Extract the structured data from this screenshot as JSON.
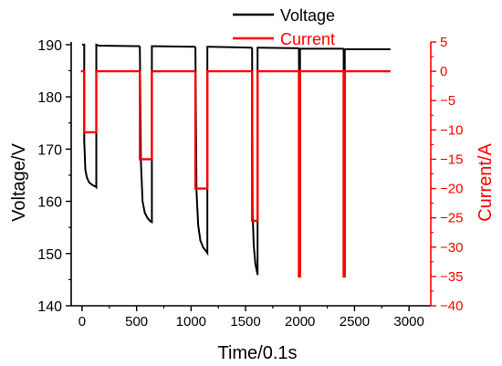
{
  "chart_data": {
    "type": "line",
    "xlabel": "Time/0.1s",
    "ylabel_left": "Voltage/V",
    "ylabel_right": "Current/A",
    "xlim": [
      -100,
      3200
    ],
    "ylim_left": [
      140,
      190.5
    ],
    "ylim_right": [
      -40,
      5
    ],
    "xticks": [
      0,
      500,
      1000,
      1500,
      2000,
      2500,
      3000
    ],
    "yticks_left": [
      140,
      150,
      160,
      170,
      180,
      190
    ],
    "yticks_right": [
      5,
      0,
      -5,
      -10,
      -15,
      -20,
      -25,
      -30,
      -35,
      -40
    ],
    "grid": false,
    "legend": {
      "position": "top-center"
    },
    "colors": {
      "voltage": "#000000",
      "current": "#ff0000",
      "axis_left": "#000000",
      "axis_right": "#ff0000"
    },
    "series": [
      {
        "name": "Voltage",
        "axis": "left",
        "color": "#000000",
        "segments": [
          {
            "x": [
              0,
              20,
              20,
              30,
              45,
              65,
              95,
              125,
              130,
              130,
              155,
              530
            ],
            "y": [
              190,
              190,
              171.5,
              166,
              164.5,
              163.6,
              163.1,
              162.8,
              162.7,
              190,
              189.8,
              189.7
            ]
          },
          {
            "x": [
              530,
              540,
              555,
              575,
              600,
              625,
              640,
              640,
              660,
              1040
            ],
            "y": [
              189.7,
              167.5,
              160,
              157.8,
              156.8,
              156.2,
              156,
              189.7,
              189.7,
              189.6
            ]
          },
          {
            "x": [
              1040,
              1050,
              1065,
              1085,
              1110,
              1135,
              1150,
              1150,
              1170,
              1560
            ],
            "y": [
              189.6,
              162,
              155.5,
              152.5,
              151.2,
              150.5,
              150.1,
              189.6,
              189.6,
              189.4
            ]
          },
          {
            "x": [
              1560,
              1565,
              1575,
              1590,
              1605,
              1610,
              1610,
              1630,
              1990
            ],
            "y": [
              189.4,
              157.5,
              151.5,
              148,
              146.5,
              145.9,
              189.4,
              189.4,
              189.3
            ]
          },
          {
            "x": [
              1990,
              2000,
              2000,
              2020,
              2400
            ],
            "y": [
              189.3,
              146.5,
              189.2,
              189.2,
              189.2
            ]
          },
          {
            "x": [
              2400,
              2408,
              2410,
              2410,
              2430,
              2830
            ],
            "y": [
              189.2,
              151,
              146,
              189.1,
              189.1,
              189.1
            ]
          }
        ]
      },
      {
        "name": "Current",
        "axis": "right",
        "color": "#ff0000",
        "segments": [
          {
            "x": [
              -10,
              20,
              20,
              130,
              130,
              530
            ],
            "y": [
              0,
              0,
              -10.4,
              -10.4,
              0,
              0
            ]
          },
          {
            "x": [
              530,
              530,
              640,
              640,
              1040
            ],
            "y": [
              0,
              -15,
              -15,
              0,
              0
            ]
          },
          {
            "x": [
              1040,
              1040,
              1150,
              1150,
              1560
            ],
            "y": [
              0,
              -20,
              -20,
              0,
              0
            ]
          },
          {
            "x": [
              1560,
              1560,
              1610,
              1610,
              1990
            ],
            "y": [
              0,
              -25.5,
              -25.5,
              0,
              0
            ]
          },
          {
            "x": [
              1990,
              1990,
              2000,
              2000,
              2400
            ],
            "y": [
              0,
              -35,
              -35,
              0,
              0
            ]
          },
          {
            "x": [
              2400,
              2400,
              2410,
              2410,
              2830
            ],
            "y": [
              0,
              -35,
              -35,
              0,
              0
            ]
          }
        ]
      }
    ]
  }
}
